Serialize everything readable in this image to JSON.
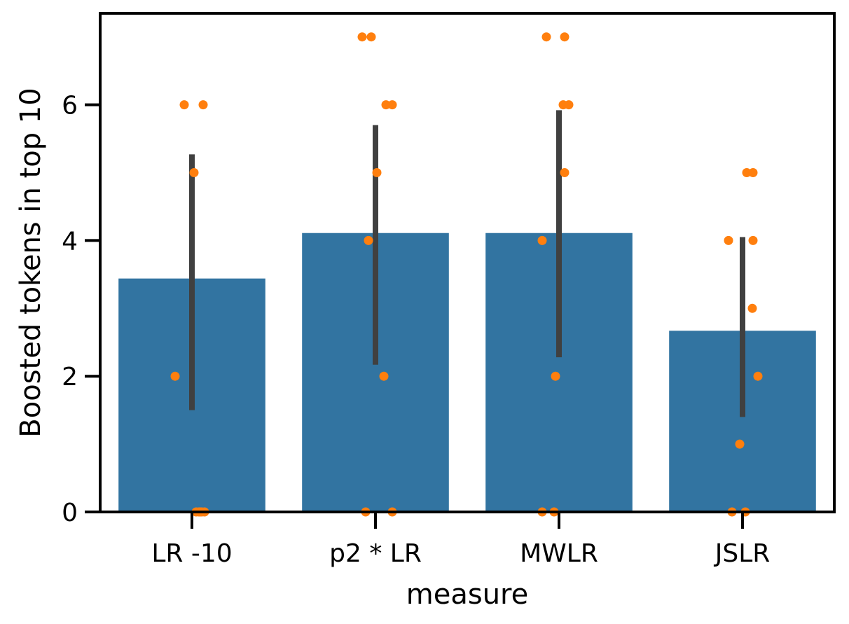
{
  "chart_data": {
    "type": "bar",
    "title": "",
    "xlabel": "measure",
    "ylabel": "Boosted tokens in top 10",
    "categories": [
      "LR -10",
      "p2 * LR",
      "MWLR",
      "JSLR"
    ],
    "values": [
      3.44,
      4.11,
      4.11,
      2.67
    ],
    "error_bars": [
      {
        "low": 1.5,
        "high": 5.27
      },
      {
        "low": 2.17,
        "high": 5.7
      },
      {
        "low": 2.28,
        "high": 5.92
      },
      {
        "low": 1.4,
        "high": 4.05
      }
    ],
    "points": [
      [
        6,
        6,
        5,
        2,
        0,
        0,
        0,
        0,
        0
      ],
      [
        7,
        7,
        6,
        6,
        5,
        4,
        2,
        0,
        0
      ],
      [
        7,
        7,
        6,
        6,
        5,
        4,
        2,
        0,
        0
      ],
      [
        5,
        5,
        4,
        4,
        3,
        2,
        1,
        0,
        0
      ]
    ],
    "yticks": [
      0,
      2,
      4,
      6
    ],
    "ylim": [
      0,
      7.35
    ],
    "grid": false,
    "legend": "none",
    "colors": {
      "bar": "#3274a1",
      "points": "#ff7f0e",
      "error_bar": "#404040",
      "axis": "#000000"
    }
  }
}
